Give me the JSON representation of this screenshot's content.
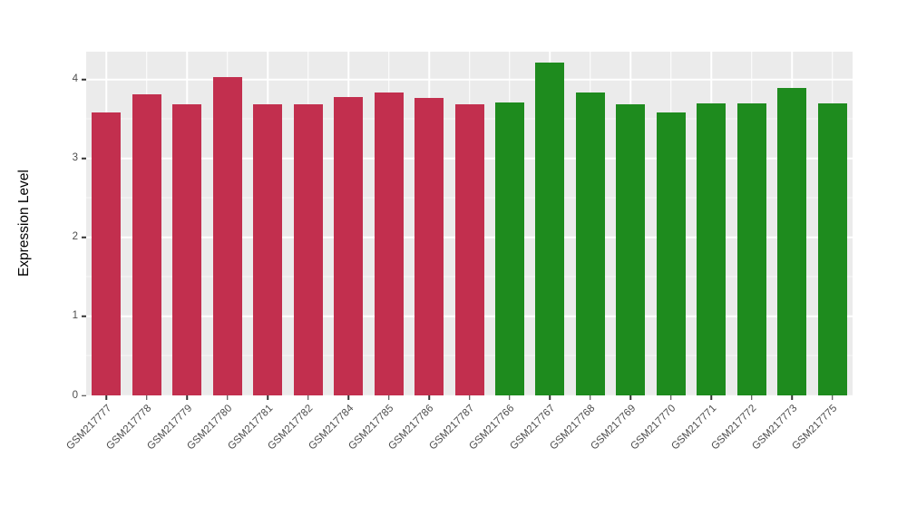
{
  "chart_data": {
    "type": "bar",
    "title": "",
    "xlabel": "",
    "ylabel": "Expression Level",
    "ylim": [
      0,
      4.35
    ],
    "yticks": [
      0,
      1,
      2,
      3,
      4
    ],
    "grid": true,
    "legend": "none",
    "panel_bg": "#EBEBEB",
    "grid_color": "#FFFFFF",
    "categories": [
      "GSM217777",
      "GSM217778",
      "GSM217779",
      "GSM217780",
      "GSM217781",
      "GSM217782",
      "GSM217784",
      "GSM217785",
      "GSM217786",
      "GSM217787",
      "GSM217766",
      "GSM217767",
      "GSM217768",
      "GSM217769",
      "GSM217770",
      "GSM217771",
      "GSM217772",
      "GSM217773",
      "GSM217775"
    ],
    "values": [
      3.58,
      3.81,
      3.68,
      4.03,
      3.68,
      3.68,
      3.78,
      3.83,
      3.77,
      3.68,
      3.71,
      4.21,
      3.83,
      3.68,
      3.58,
      3.7,
      3.7,
      3.89,
      3.7
    ],
    "groups": [
      "red",
      "red",
      "red",
      "red",
      "red",
      "red",
      "red",
      "red",
      "red",
      "red",
      "green",
      "green",
      "green",
      "green",
      "green",
      "green",
      "green",
      "green",
      "green"
    ],
    "group_colors": {
      "red": "#C22F4E",
      "green": "#1E8B1E"
    }
  }
}
